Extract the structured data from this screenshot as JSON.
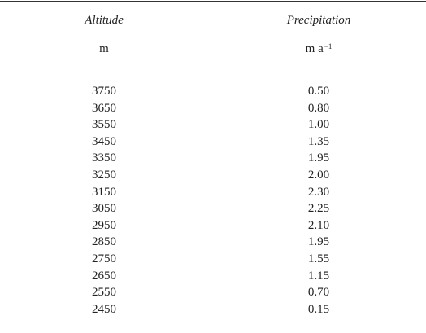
{
  "table": {
    "header": [
      "Altitude",
      "Precipitation"
    ],
    "units": [
      {
        "text": "m"
      },
      {
        "text": "m a",
        "sup": "−1"
      }
    ],
    "rows": [
      [
        "3750",
        "0.50"
      ],
      [
        "3650",
        "0.80"
      ],
      [
        "3550",
        "1.00"
      ],
      [
        "3450",
        "1.35"
      ],
      [
        "3350",
        "1.95"
      ],
      [
        "3250",
        "2.00"
      ],
      [
        "3150",
        "2.30"
      ],
      [
        "3050",
        "2.25"
      ],
      [
        "2950",
        "2.10"
      ],
      [
        "2850",
        "1.95"
      ],
      [
        "2750",
        "1.55"
      ],
      [
        "2650",
        "1.15"
      ],
      [
        "2550",
        "0.70"
      ],
      [
        "2450",
        "0.15"
      ]
    ]
  }
}
